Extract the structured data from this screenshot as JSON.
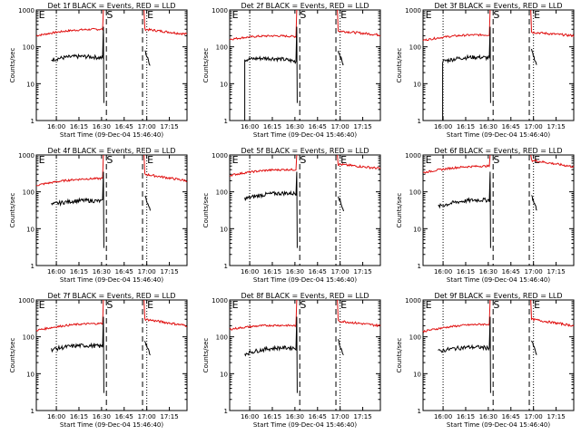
{
  "chart_data": {
    "type": "line",
    "panels": [
      {
        "title": "Det 1f BLACK = Events, RED = LLD"
      },
      {
        "title": "Det 2f BLACK = Events, RED = LLD"
      },
      {
        "title": "Det 3f BLACK = Events, RED = LLD"
      },
      {
        "title": "Det 4f BLACK = Events, RED = LLD"
      },
      {
        "title": "Det 5f BLACK = Events, RED = LLD"
      },
      {
        "title": "Det 6f BLACK = Events, RED = LLD"
      },
      {
        "title": "Det 7f BLACK = Events, RED = LLD"
      },
      {
        "title": "Det 8f BLACK = Events, RED = LLD"
      },
      {
        "title": "Det 9f BLACK = Events, RED = LLD"
      }
    ],
    "xlabel": "Start Time (09-Dec-04 15:46:40)",
    "ylabel": "Counts/sec",
    "x_unit": "minutes after 15:46:40",
    "xlim": [
      0,
      100
    ],
    "ylim": [
      1,
      1000
    ],
    "y_scale": "log",
    "x_ticks": [
      {
        "label": "16:00",
        "value": 13.3
      },
      {
        "label": "16:15",
        "value": 28.3
      },
      {
        "label": "16:30",
        "value": 43.3
      },
      {
        "label": "16:45",
        "value": 58.3
      },
      {
        "label": "17:00",
        "value": 73.3
      },
      {
        "label": "17:15",
        "value": 88.3
      }
    ],
    "y_ticks": [
      {
        "label": "1",
        "value": 1
      },
      {
        "label": "10",
        "value": 10
      },
      {
        "label": "100",
        "value": 100
      },
      {
        "label": "1000",
        "value": 1000
      }
    ],
    "markers": [
      {
        "label": "E",
        "x": 1
      },
      {
        "label": "S",
        "x": 46
      },
      {
        "label": "E",
        "x": 73
      }
    ],
    "dotted_lines_x": [
      13.3,
      73.3
    ],
    "dashed_lines_x": [
      46.5,
      70.5
    ],
    "series": [
      {
        "name": "BLACK = Events",
        "color": "#000000",
        "kind": "events"
      },
      {
        "name": "RED = LLD",
        "color": "#e01010",
        "kind": "lld"
      }
    ],
    "panel_profiles": [
      {
        "red_start": 200,
        "red_end": 300,
        "blk_start": 45,
        "blk_end": 50,
        "blk_drop_x": null,
        "red_after": 300,
        "red_after_end": 220
      },
      {
        "red_start": 160,
        "red_end": 190,
        "blk_start": 45,
        "blk_end": 40,
        "blk_drop_x": 10,
        "red_after": 270,
        "red_after_end": 210
      },
      {
        "red_start": 150,
        "red_end": 210,
        "blk_start": 40,
        "blk_end": 50,
        "blk_drop_x": 13,
        "red_after": 250,
        "red_after_end": 200
      },
      {
        "red_start": 150,
        "red_end": 230,
        "blk_start": 45,
        "blk_end": 55,
        "blk_drop_x": null,
        "red_after": 300,
        "red_after_end": 200
      },
      {
        "red_start": 280,
        "red_end": 400,
        "blk_start": 65,
        "blk_end": 90,
        "blk_drop_x": null,
        "red_after": 560,
        "red_after_end": 430
      },
      {
        "red_start": 330,
        "red_end": 500,
        "blk_start": 40,
        "blk_end": 60,
        "blk_drop_x": null,
        "red_after": 720,
        "red_after_end": 480
      },
      {
        "red_start": 150,
        "red_end": 230,
        "blk_start": 45,
        "blk_end": 55,
        "blk_drop_x": null,
        "red_after": 300,
        "red_after_end": 200
      },
      {
        "red_start": 160,
        "red_end": 200,
        "blk_start": 35,
        "blk_end": 50,
        "blk_drop_x": null,
        "red_after": 270,
        "red_after_end": 200
      },
      {
        "red_start": 140,
        "red_end": 220,
        "blk_start": 40,
        "blk_end": 50,
        "blk_drop_x": null,
        "red_after": 300,
        "red_after_end": 200
      }
    ]
  }
}
